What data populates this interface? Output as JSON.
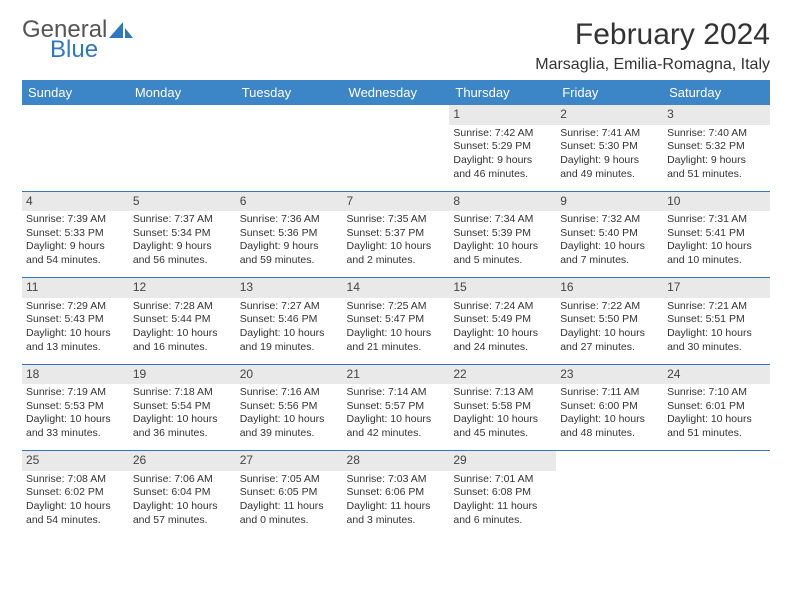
{
  "logo": {
    "general": "General",
    "blue": "Blue"
  },
  "title": "February 2024",
  "location": "Marsaglia, Emilia-Romagna, Italy",
  "colors": {
    "header_bg": "#3c85c6",
    "header_text": "#ffffff",
    "rule": "#2f78bf",
    "daynum_bg": "#e9e9e9",
    "text": "#333333",
    "logo_gray": "#555555",
    "logo_blue": "#2f78bf"
  },
  "fonts": {
    "title_size_pt": 22,
    "location_size_pt": 12,
    "weekday_size_pt": 10,
    "body_size_pt": 8
  },
  "weekdays": [
    "Sunday",
    "Monday",
    "Tuesday",
    "Wednesday",
    "Thursday",
    "Friday",
    "Saturday"
  ],
  "weeks": [
    [
      null,
      null,
      null,
      null,
      {
        "n": "1",
        "rise": "Sunrise: 7:42 AM",
        "set": "Sunset: 5:29 PM",
        "day": "Daylight: 9 hours and 46 minutes."
      },
      {
        "n": "2",
        "rise": "Sunrise: 7:41 AM",
        "set": "Sunset: 5:30 PM",
        "day": "Daylight: 9 hours and 49 minutes."
      },
      {
        "n": "3",
        "rise": "Sunrise: 7:40 AM",
        "set": "Sunset: 5:32 PM",
        "day": "Daylight: 9 hours and 51 minutes."
      }
    ],
    [
      {
        "n": "4",
        "rise": "Sunrise: 7:39 AM",
        "set": "Sunset: 5:33 PM",
        "day": "Daylight: 9 hours and 54 minutes."
      },
      {
        "n": "5",
        "rise": "Sunrise: 7:37 AM",
        "set": "Sunset: 5:34 PM",
        "day": "Daylight: 9 hours and 56 minutes."
      },
      {
        "n": "6",
        "rise": "Sunrise: 7:36 AM",
        "set": "Sunset: 5:36 PM",
        "day": "Daylight: 9 hours and 59 minutes."
      },
      {
        "n": "7",
        "rise": "Sunrise: 7:35 AM",
        "set": "Sunset: 5:37 PM",
        "day": "Daylight: 10 hours and 2 minutes."
      },
      {
        "n": "8",
        "rise": "Sunrise: 7:34 AM",
        "set": "Sunset: 5:39 PM",
        "day": "Daylight: 10 hours and 5 minutes."
      },
      {
        "n": "9",
        "rise": "Sunrise: 7:32 AM",
        "set": "Sunset: 5:40 PM",
        "day": "Daylight: 10 hours and 7 minutes."
      },
      {
        "n": "10",
        "rise": "Sunrise: 7:31 AM",
        "set": "Sunset: 5:41 PM",
        "day": "Daylight: 10 hours and 10 minutes."
      }
    ],
    [
      {
        "n": "11",
        "rise": "Sunrise: 7:29 AM",
        "set": "Sunset: 5:43 PM",
        "day": "Daylight: 10 hours and 13 minutes."
      },
      {
        "n": "12",
        "rise": "Sunrise: 7:28 AM",
        "set": "Sunset: 5:44 PM",
        "day": "Daylight: 10 hours and 16 minutes."
      },
      {
        "n": "13",
        "rise": "Sunrise: 7:27 AM",
        "set": "Sunset: 5:46 PM",
        "day": "Daylight: 10 hours and 19 minutes."
      },
      {
        "n": "14",
        "rise": "Sunrise: 7:25 AM",
        "set": "Sunset: 5:47 PM",
        "day": "Daylight: 10 hours and 21 minutes."
      },
      {
        "n": "15",
        "rise": "Sunrise: 7:24 AM",
        "set": "Sunset: 5:49 PM",
        "day": "Daylight: 10 hours and 24 minutes."
      },
      {
        "n": "16",
        "rise": "Sunrise: 7:22 AM",
        "set": "Sunset: 5:50 PM",
        "day": "Daylight: 10 hours and 27 minutes."
      },
      {
        "n": "17",
        "rise": "Sunrise: 7:21 AM",
        "set": "Sunset: 5:51 PM",
        "day": "Daylight: 10 hours and 30 minutes."
      }
    ],
    [
      {
        "n": "18",
        "rise": "Sunrise: 7:19 AM",
        "set": "Sunset: 5:53 PM",
        "day": "Daylight: 10 hours and 33 minutes."
      },
      {
        "n": "19",
        "rise": "Sunrise: 7:18 AM",
        "set": "Sunset: 5:54 PM",
        "day": "Daylight: 10 hours and 36 minutes."
      },
      {
        "n": "20",
        "rise": "Sunrise: 7:16 AM",
        "set": "Sunset: 5:56 PM",
        "day": "Daylight: 10 hours and 39 minutes."
      },
      {
        "n": "21",
        "rise": "Sunrise: 7:14 AM",
        "set": "Sunset: 5:57 PM",
        "day": "Daylight: 10 hours and 42 minutes."
      },
      {
        "n": "22",
        "rise": "Sunrise: 7:13 AM",
        "set": "Sunset: 5:58 PM",
        "day": "Daylight: 10 hours and 45 minutes."
      },
      {
        "n": "23",
        "rise": "Sunrise: 7:11 AM",
        "set": "Sunset: 6:00 PM",
        "day": "Daylight: 10 hours and 48 minutes."
      },
      {
        "n": "24",
        "rise": "Sunrise: 7:10 AM",
        "set": "Sunset: 6:01 PM",
        "day": "Daylight: 10 hours and 51 minutes."
      }
    ],
    [
      {
        "n": "25",
        "rise": "Sunrise: 7:08 AM",
        "set": "Sunset: 6:02 PM",
        "day": "Daylight: 10 hours and 54 minutes."
      },
      {
        "n": "26",
        "rise": "Sunrise: 7:06 AM",
        "set": "Sunset: 6:04 PM",
        "day": "Daylight: 10 hours and 57 minutes."
      },
      {
        "n": "27",
        "rise": "Sunrise: 7:05 AM",
        "set": "Sunset: 6:05 PM",
        "day": "Daylight: 11 hours and 0 minutes."
      },
      {
        "n": "28",
        "rise": "Sunrise: 7:03 AM",
        "set": "Sunset: 6:06 PM",
        "day": "Daylight: 11 hours and 3 minutes."
      },
      {
        "n": "29",
        "rise": "Sunrise: 7:01 AM",
        "set": "Sunset: 6:08 PM",
        "day": "Daylight: 11 hours and 6 minutes."
      },
      null,
      null
    ]
  ]
}
